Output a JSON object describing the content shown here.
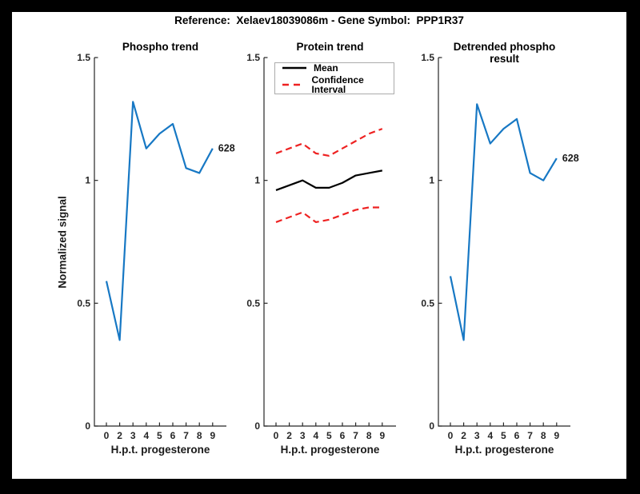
{
  "window": {
    "title": "Reference:  Xelaev18039086m - Gene Symbol:  PPP1R37"
  },
  "colors": {
    "figure_border": "#000000",
    "canvas": "#ffffff",
    "axis": "#262626",
    "phospho_line": "#1778c4",
    "mean_line": "#000000",
    "ci_line": "#ee2222"
  },
  "chart_data": [
    {
      "type": "line",
      "title": "Phospho trend",
      "xlabel": "H.p.t. progesterone",
      "ylabel": "Normalized signal",
      "x_tick_labels": [
        "0",
        "2",
        "3",
        "4",
        "5",
        "6",
        "7",
        "8",
        "9"
      ],
      "y_ticks": [
        0,
        0.5,
        1,
        1.5
      ],
      "ylim": [
        0,
        1.5
      ],
      "grid": false,
      "end_label": "628",
      "series": [
        {
          "name": "628",
          "color": "#1778c4",
          "dash": false,
          "values": [
            0.59,
            0.35,
            1.32,
            1.13,
            1.19,
            1.23,
            1.05,
            1.03,
            1.13
          ]
        }
      ]
    },
    {
      "type": "line",
      "title": "Protein trend",
      "xlabel": "H.p.t. progesterone",
      "ylabel": "",
      "x_tick_labels": [
        "0",
        "2",
        "3",
        "4",
        "5",
        "6",
        "7",
        "8",
        "9"
      ],
      "y_ticks": [
        0,
        0.5,
        1,
        1.5
      ],
      "ylim": [
        0,
        1.5
      ],
      "grid": false,
      "legend": [
        {
          "label": "Mean",
          "color": "#000000",
          "dash": false
        },
        {
          "label": "Confidence Interval",
          "color": "#ee2222",
          "dash": true
        }
      ],
      "series": [
        {
          "name": "Mean",
          "color": "#000000",
          "dash": false,
          "values": [
            0.96,
            0.98,
            1.0,
            0.97,
            0.97,
            0.99,
            1.02,
            1.03,
            1.04
          ]
        },
        {
          "name": "Confidence Interval upper",
          "color": "#ee2222",
          "dash": true,
          "values": [
            1.11,
            1.13,
            1.15,
            1.11,
            1.1,
            1.13,
            1.16,
            1.19,
            1.21
          ]
        },
        {
          "name": "Confidence Interval lower",
          "color": "#ee2222",
          "dash": true,
          "values": [
            0.83,
            0.85,
            0.87,
            0.83,
            0.84,
            0.86,
            0.88,
            0.89,
            0.89
          ]
        }
      ]
    },
    {
      "type": "line",
      "title": "Detrended phospho result",
      "xlabel": "H.p.t. progesterone",
      "ylabel": "",
      "x_tick_labels": [
        "0",
        "2",
        "3",
        "4",
        "5",
        "6",
        "7",
        "8",
        "9"
      ],
      "y_ticks": [
        0,
        0.5,
        1,
        1.5
      ],
      "ylim": [
        0,
        1.5
      ],
      "grid": false,
      "end_label": "628",
      "series": [
        {
          "name": "628",
          "color": "#1778c4",
          "dash": false,
          "values": [
            0.61,
            0.35,
            1.31,
            1.15,
            1.21,
            1.25,
            1.03,
            1.0,
            1.09
          ]
        }
      ]
    }
  ]
}
